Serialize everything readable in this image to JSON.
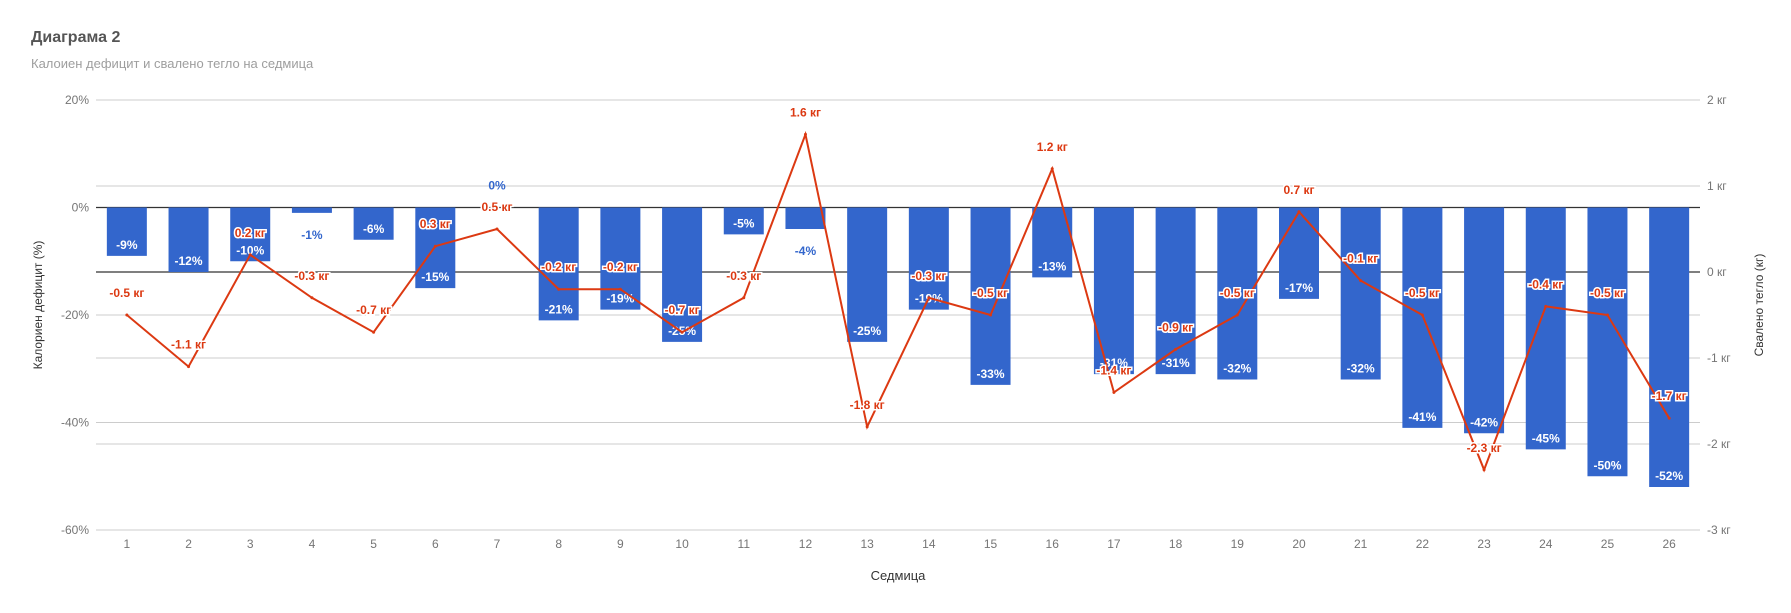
{
  "title": "Диаграма 2",
  "subtitle": "Калоиен дефицит и свалено тегло на седмица",
  "colors": {
    "bars": "#3366cc",
    "line": "#dc3912",
    "grid": "#cccccc",
    "axis_text": "#757575"
  },
  "chart_data": {
    "type": "bar",
    "combo": "bar + line (dual axis)",
    "title": "Диаграма 2",
    "subtitle": "Калоиен дефицит и свалено тегло на седмица",
    "xlabel": "Седмица",
    "ylabel_left": "Калориен дефицит (%)",
    "ylabel_right": "Свалено тегло (кг)",
    "categories": [
      "1",
      "2",
      "3",
      "4",
      "5",
      "6",
      "7",
      "8",
      "9",
      "10",
      "11",
      "12",
      "13",
      "14",
      "15",
      "16",
      "17",
      "18",
      "19",
      "20",
      "21",
      "22",
      "23",
      "24",
      "25",
      "26"
    ],
    "ylim_left": [
      -60,
      20
    ],
    "ylim_right": [
      -3,
      2
    ],
    "left_ticks": [
      "-60%",
      "-40%",
      "-20%",
      "0%",
      "20%"
    ],
    "left_tick_values": [
      -60,
      -40,
      -20,
      0,
      20
    ],
    "right_ticks": [
      "-3 кг",
      "-2 кг",
      "-1 кг",
      "0 кг",
      "1 кг",
      "2 кг"
    ],
    "right_tick_values": [
      -3,
      -2,
      -1,
      0,
      1,
      2
    ],
    "grid": true,
    "series": [
      {
        "type": "bar",
        "axis": "left",
        "values": [
          -9,
          -12,
          -10,
          -1,
          -6,
          -15,
          0,
          -21,
          -19,
          -25,
          -5,
          -4,
          -25,
          -19,
          -33,
          -13,
          -31,
          -31,
          -32,
          -17,
          -32,
          -41,
          -42,
          -45,
          -50,
          -52
        ],
        "labels": [
          "-9%",
          "-12%",
          "-10%",
          "-1%",
          "-6%",
          "-15%",
          "0%",
          "-21%",
          "-19%",
          "-25%",
          "-5%",
          "-4%",
          "-25%",
          "-19%",
          "-33%",
          "-13%",
          "-31%",
          "-31%",
          "-32%",
          "-17%",
          "-32%",
          "-41%",
          "-42%",
          "-45%",
          "-50%",
          "-52%"
        ]
      },
      {
        "type": "line",
        "axis": "right",
        "values": [
          -0.5,
          -1.1,
          0.2,
          -0.3,
          -0.7,
          0.3,
          0.5,
          -0.2,
          -0.2,
          -0.7,
          -0.3,
          1.6,
          -1.8,
          -0.3,
          -0.5,
          1.2,
          -1.4,
          -0.9,
          -0.5,
          0.7,
          -0.1,
          -0.5,
          -2.3,
          -0.4,
          -0.5,
          -1.7
        ],
        "labels": [
          "-0.5 кг",
          "-1.1 кг",
          "0.2 кг",
          "-0.3 кг",
          "-0.7 кг",
          "0.3 кг",
          "0.5 кг",
          "-0.2 кг",
          "-0.2 кг",
          "-0.7 кг",
          "-0.3 кг",
          "1.6 кг",
          "-1.8 кг",
          "-0.3 кг",
          "-0.5 кг",
          "1.2 кг",
          "-1.4 кг",
          "-0.9 кг",
          "-0.5 кг",
          "0.7 кг",
          "-0.1 кг",
          "-0.5 кг",
          "-2.3 кг",
          "-0.4 кг",
          "-0.5 кг",
          "-1.7 кг"
        ]
      }
    ]
  }
}
